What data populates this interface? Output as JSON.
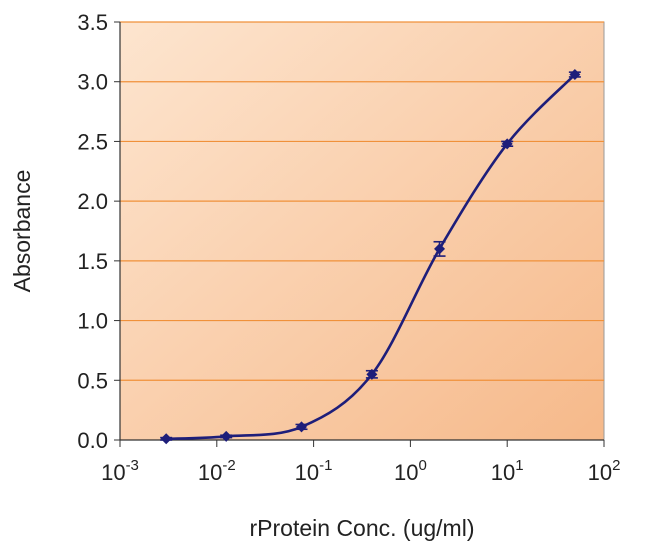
{
  "colors": {
    "plot_bg_start": "#fde5cf",
    "plot_bg_end": "#f6b98a",
    "gridline": "#f0913a",
    "series": "#1e1e7a",
    "text": "#222222"
  },
  "chart_data": {
    "type": "line",
    "title": "",
    "xlabel": "rProtein Conc. (ug/ml)",
    "ylabel": "Absorbance",
    "xscale": "log",
    "xlim": [
      0.001,
      100
    ],
    "ylim": [
      0,
      3.5
    ],
    "grid": "horizontal",
    "legend": "none",
    "ytick_labels": [
      "0.0",
      "0.5",
      "1.0",
      "1.5",
      "2.0",
      "2.5",
      "3.0",
      "3.5"
    ],
    "xtick_labels": [
      {
        "base": "10",
        "exp": "-3"
      },
      {
        "base": "10",
        "exp": "-2"
      },
      {
        "base": "10",
        "exp": "-1"
      },
      {
        "base": "10",
        "exp": "0"
      },
      {
        "base": "10",
        "exp": "1"
      },
      {
        "base": "10",
        "exp": "2"
      }
    ],
    "series": [
      {
        "x": [
          0.003,
          0.0125,
          0.075,
          0.4,
          2,
          10,
          50
        ],
        "y": [
          0.01,
          0.03,
          0.11,
          0.55,
          1.6,
          2.48,
          3.06
        ],
        "error": [
          0.01,
          0.01,
          0.02,
          0.03,
          0.06,
          0.02,
          0.02
        ]
      }
    ]
  }
}
